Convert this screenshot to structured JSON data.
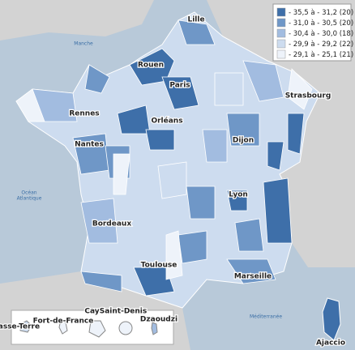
{
  "legend": {
    "classes": [
      {
        "label": "- 35,5 à - 31,2 (20)",
        "color": "#3e6fa9"
      },
      {
        "label": "- 31,0 à - 30,5 (20)",
        "color": "#6f97c7"
      },
      {
        "label": "- 30,4 à - 30,0 (18)",
        "color": "#a2bce0"
      },
      {
        "label": "- 29,9 à - 29,2 (22)",
        "color": "#cddcef"
      },
      {
        "label": "- 29,1 à - 25,1 (21)",
        "color": "#eef3fa"
      }
    ]
  },
  "cities": [
    "Lille",
    "Rouen",
    "Paris",
    "Strasbourg",
    "Rennes",
    "Orléans",
    "Nantes",
    "Dijon",
    "Lyon",
    "Bordeaux",
    "Toulouse",
    "Marseille",
    "Ajaccio",
    "Basse-Terre",
    "Fort-de-France",
    "Cayenne",
    "Saint-Denis",
    "Dzaoudzi"
  ],
  "seas": [
    "Manche",
    "Océan",
    "Atlantique",
    "Méditerranée"
  ]
}
